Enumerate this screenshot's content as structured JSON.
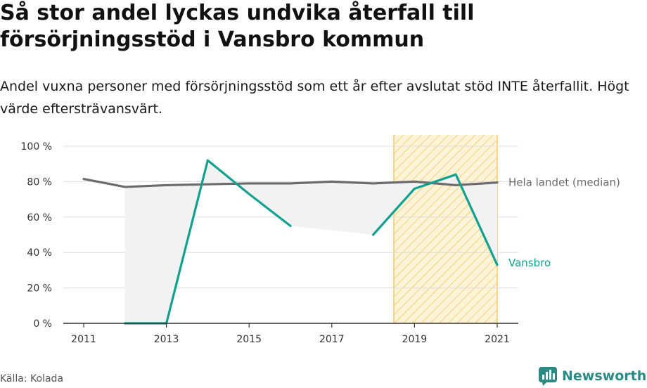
{
  "title": "Så stor andel lyckas undvika återfall till försörjningsstöd i Vansbro kommun",
  "subtitle": "Andel vuxna personer med försörjningsstöd som ett år efter avslutat stöd INTE återfallit. Högt värde eftersträvansvärt.",
  "source": "Källa: Kolada",
  "brand": {
    "name": "Newsworthy",
    "icon": "newsworthy-logo-icon"
  },
  "colors": {
    "vansbro": "#12a08f",
    "median": "#6b6b6f",
    "highlight_stroke": "#f2c96a",
    "highlight_fill": "#fdf3d6",
    "area_fill": "#f2f2f2",
    "axis": "#333333",
    "grid": "#dddddd",
    "brand": "#2a8a84"
  },
  "chart_data": {
    "type": "line",
    "x": [
      2011,
      2012,
      2013,
      2014,
      2015,
      2016,
      2017,
      2018,
      2019,
      2020,
      2021
    ],
    "x_ticks": [
      "2011",
      "2013",
      "2015",
      "2017",
      "2019",
      "2021"
    ],
    "y_ticks": [
      "0 %",
      "20 %",
      "40 %",
      "60 %",
      "80 %",
      "100 %"
    ],
    "ylim": [
      0,
      100
    ],
    "xlim": [
      2011,
      2021
    ],
    "grid": true,
    "series": [
      {
        "name": "Hela landet (median)",
        "key": "median",
        "values": [
          81.5,
          77,
          78,
          78.5,
          79,
          79,
          80,
          79,
          80,
          78,
          79.5
        ]
      },
      {
        "name": "Vansbro",
        "key": "vansbro",
        "values": [
          null,
          0,
          0,
          92,
          73,
          55,
          null,
          50,
          76,
          84,
          33
        ]
      }
    ],
    "highlight": {
      "from": 2018.5,
      "to": 2021,
      "pattern": "diagonal-hatch"
    },
    "difference_area": {
      "between": [
        "median",
        "vansbro"
      ]
    }
  }
}
